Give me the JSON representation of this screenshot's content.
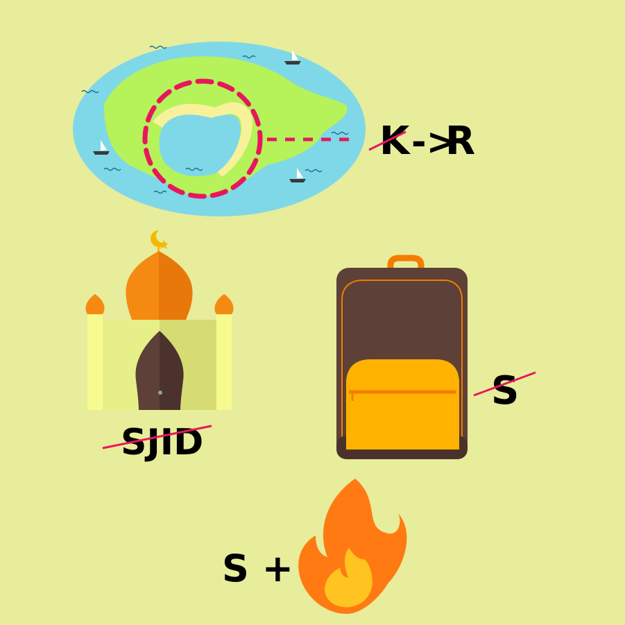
{
  "puzzle": {
    "clue1": {
      "crossed_letter": "K",
      "arrow": "->",
      "new_letter": "R"
    },
    "clue2": {
      "crossed_text": "SJID"
    },
    "clue3": {
      "crossed_letter": "S"
    },
    "clue4": {
      "prefix": "S +"
    }
  },
  "colors": {
    "background": "#e7ed9b",
    "strike": "#e8175d",
    "water": "#7fd8e8",
    "land": "#b6f25a",
    "sand": "#f7f29a",
    "dome": "#f58a13",
    "bag_body": "#5d4037",
    "bag_pocket": "#ffb300",
    "flame_outer": "#ff7a12",
    "flame_inner": "#ffc41f"
  },
  "icons": [
    "island-map-icon",
    "boat-icon",
    "mosque-icon",
    "crescent-star-icon",
    "backpack-icon",
    "fire-icon"
  ]
}
